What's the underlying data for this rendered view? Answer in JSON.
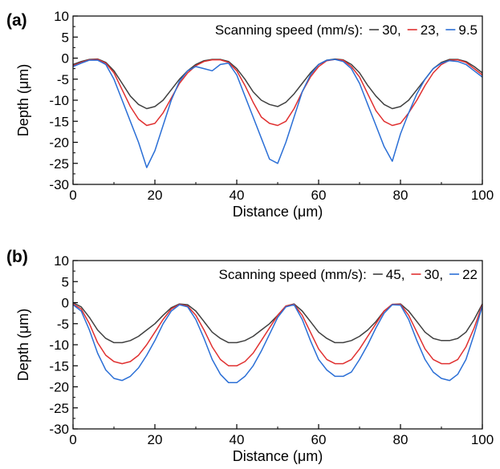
{
  "figure": {
    "panels": [
      {
        "panel_label": "(a)",
        "legend_title": "Scanning speed (mm/s):",
        "legend_entries": [
          "30,",
          "23,",
          "9.5"
        ]
      },
      {
        "panel_label": "(b)",
        "legend_title": "Scanning speed (mm/s):",
        "legend_entries": [
          "45,",
          "30,",
          "22"
        ]
      }
    ]
  },
  "chart_data": [
    {
      "type": "line",
      "panel": "(a)",
      "title": "",
      "xlabel": "Distance (μm)",
      "ylabel": "Depth (μm)",
      "xlim": [
        0,
        100
      ],
      "ylim": [
        -30,
        10
      ],
      "xticks": [
        0,
        20,
        40,
        60,
        80,
        100
      ],
      "yticks": [
        10,
        5,
        0,
        -5,
        -10,
        -15,
        -20,
        -25,
        -30
      ],
      "grid": false,
      "legend_position": "top-right",
      "x": [
        0,
        2,
        4,
        6,
        8,
        10,
        12,
        14,
        16,
        18,
        20,
        22,
        24,
        26,
        28,
        30,
        32,
        34,
        36,
        38,
        40,
        42,
        44,
        46,
        48,
        50,
        52,
        54,
        56,
        58,
        60,
        62,
        64,
        66,
        68,
        70,
        72,
        74,
        76,
        78,
        80,
        82,
        84,
        86,
        88,
        90,
        92,
        94,
        96,
        98,
        100
      ],
      "series": [
        {
          "name": "30",
          "color": "#404040",
          "values": [
            -1.5,
            -0.8,
            -0.3,
            -0.2,
            -1.0,
            -3.0,
            -6.0,
            -9.0,
            -11.0,
            -12.0,
            -11.5,
            -10.0,
            -7.5,
            -5.0,
            -3.0,
            -1.5,
            -0.6,
            -0.3,
            -0.3,
            -0.8,
            -2.5,
            -5.0,
            -8.0,
            -10.0,
            -11.0,
            -11.5,
            -10.5,
            -8.5,
            -6.0,
            -3.5,
            -1.5,
            -0.5,
            -0.2,
            -0.4,
            -1.5,
            -3.5,
            -6.5,
            -9.0,
            -11.0,
            -12.0,
            -11.5,
            -10.0,
            -7.5,
            -5.0,
            -2.5,
            -1.0,
            -0.3,
            -0.3,
            -0.8,
            -2.0,
            -3.5
          ]
        },
        {
          "name": "23",
          "color": "#e03030",
          "values": [
            -1.8,
            -1.0,
            -0.4,
            -0.3,
            -1.2,
            -3.5,
            -7.5,
            -11.5,
            -14.5,
            -16.0,
            -15.5,
            -13.0,
            -9.5,
            -6.0,
            -3.5,
            -1.8,
            -0.8,
            -0.4,
            -0.4,
            -1.0,
            -3.0,
            -6.5,
            -10.5,
            -14.0,
            -15.5,
            -16.0,
            -15.0,
            -12.0,
            -8.0,
            -4.5,
            -2.0,
            -0.6,
            -0.3,
            -0.5,
            -2.0,
            -4.5,
            -8.5,
            -12.5,
            -15.0,
            -16.0,
            -15.5,
            -13.0,
            -10.0,
            -6.5,
            -3.5,
            -1.5,
            -0.5,
            -0.4,
            -1.0,
            -2.5,
            -4.0
          ]
        },
        {
          "name": "9.5",
          "color": "#2b6fd6",
          "values": [
            -2.0,
            -1.2,
            -0.5,
            -0.5,
            -1.5,
            -5.0,
            -10.0,
            -15.0,
            -20.0,
            -26.0,
            -22.0,
            -16.0,
            -10.0,
            -5.5,
            -3.0,
            -2.0,
            -2.5,
            -3.0,
            -1.5,
            -1.2,
            -4.0,
            -9.0,
            -14.0,
            -19.0,
            -24.0,
            -25.0,
            -20.0,
            -14.0,
            -8.0,
            -4.0,
            -1.5,
            -0.5,
            -0.3,
            -0.8,
            -2.5,
            -6.0,
            -11.0,
            -16.0,
            -21.0,
            -24.5,
            -18.0,
            -13.0,
            -8.5,
            -5.0,
            -2.5,
            -1.2,
            -0.6,
            -0.8,
            -1.5,
            -3.0,
            -4.5
          ]
        }
      ]
    },
    {
      "type": "line",
      "panel": "(b)",
      "title": "",
      "xlabel": "Distance (μm)",
      "ylabel": "Depth (μm)",
      "xlim": [
        0,
        100
      ],
      "ylim": [
        -30,
        10
      ],
      "xticks": [
        0,
        20,
        40,
        60,
        80,
        100
      ],
      "yticks": [
        10,
        5,
        0,
        -5,
        -10,
        -15,
        -20,
        -25,
        -30
      ],
      "grid": false,
      "legend_position": "top-right",
      "x": [
        0,
        2,
        4,
        6,
        8,
        10,
        12,
        14,
        16,
        18,
        20,
        22,
        24,
        26,
        28,
        30,
        32,
        34,
        36,
        38,
        40,
        42,
        44,
        46,
        48,
        50,
        52,
        54,
        56,
        58,
        60,
        62,
        64,
        66,
        68,
        70,
        72,
        74,
        76,
        78,
        80,
        82,
        84,
        86,
        88,
        90,
        92,
        94,
        96,
        98,
        100
      ],
      "series": [
        {
          "name": "45",
          "color": "#404040",
          "values": [
            0.0,
            -1.0,
            -3.5,
            -6.5,
            -8.5,
            -9.5,
            -9.5,
            -9.0,
            -8.0,
            -6.5,
            -5.0,
            -3.0,
            -1.2,
            -0.3,
            -0.5,
            -2.0,
            -4.5,
            -7.0,
            -8.5,
            -9.5,
            -9.5,
            -9.0,
            -8.0,
            -6.5,
            -5.0,
            -3.0,
            -0.8,
            -0.3,
            -2.0,
            -4.5,
            -7.0,
            -8.5,
            -9.5,
            -9.5,
            -9.0,
            -8.0,
            -6.5,
            -4.5,
            -2.0,
            -0.4,
            -0.3,
            -2.0,
            -4.5,
            -7.0,
            -8.5,
            -9.0,
            -9.0,
            -8.5,
            -7.0,
            -4.0,
            -0.3
          ]
        },
        {
          "name": "30",
          "color": "#e03030",
          "values": [
            -0.3,
            -1.5,
            -5.0,
            -9.5,
            -12.5,
            -14.0,
            -14.5,
            -14.0,
            -12.5,
            -10.0,
            -7.0,
            -4.0,
            -1.5,
            -0.4,
            -0.8,
            -3.0,
            -6.5,
            -10.5,
            -13.5,
            -15.0,
            -15.0,
            -14.0,
            -12.0,
            -9.0,
            -6.0,
            -3.0,
            -0.8,
            -0.4,
            -3.0,
            -7.0,
            -11.0,
            -13.5,
            -14.5,
            -14.5,
            -13.5,
            -11.0,
            -8.0,
            -5.0,
            -2.0,
            -0.4,
            -0.4,
            -3.0,
            -7.0,
            -11.0,
            -13.5,
            -14.5,
            -14.5,
            -13.5,
            -10.5,
            -6.0,
            -0.5
          ]
        },
        {
          "name": "22",
          "color": "#2b6fd6",
          "values": [
            -0.5,
            -2.0,
            -6.5,
            -12.0,
            -16.0,
            -18.0,
            -18.5,
            -17.5,
            -15.5,
            -12.5,
            -9.0,
            -5.0,
            -2.0,
            -0.5,
            -1.0,
            -4.0,
            -8.5,
            -13.5,
            -17.0,
            -19.0,
            -19.0,
            -17.5,
            -15.0,
            -11.5,
            -7.5,
            -3.5,
            -1.0,
            -0.5,
            -4.0,
            -9.0,
            -13.5,
            -16.0,
            -17.5,
            -17.5,
            -16.5,
            -13.5,
            -10.0,
            -6.0,
            -2.5,
            -0.5,
            -0.6,
            -4.0,
            -9.0,
            -13.5,
            -16.5,
            -18.0,
            -18.5,
            -17.0,
            -13.5,
            -7.5,
            -0.8
          ]
        }
      ]
    }
  ]
}
